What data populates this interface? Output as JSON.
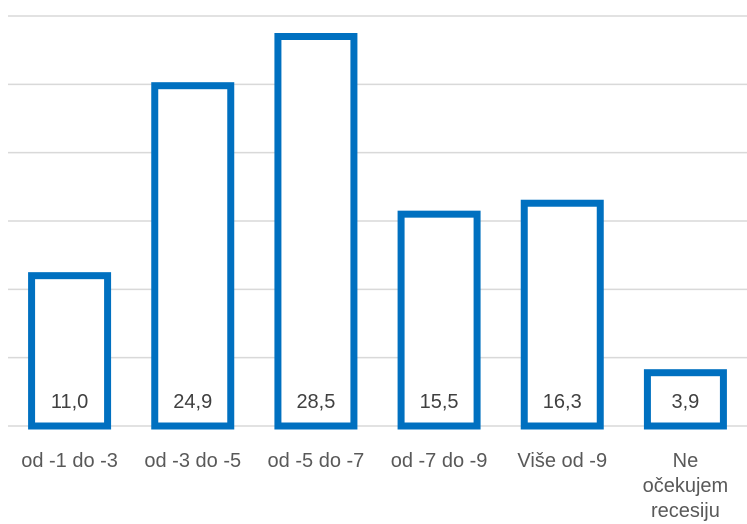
{
  "chart_data": {
    "type": "bar",
    "categories": [
      "od -1 do -3",
      "od -3 do -5",
      "od -5 do -7",
      "od -7 do -9",
      "Više od -9",
      "Ne očekujem recesiju"
    ],
    "category_lines": [
      [
        "od -1 do -3"
      ],
      [
        "od -3 do -5"
      ],
      [
        "od -5 do -7"
      ],
      [
        "od -7 do -9"
      ],
      [
        "Više od -9"
      ],
      [
        "Ne",
        "očekujem",
        "recesiju"
      ]
    ],
    "values": [
      11.0,
      24.9,
      28.5,
      15.5,
      16.3,
      3.9
    ],
    "value_labels": [
      "11,0",
      "24,9",
      "28,5",
      "15,5",
      "16,3",
      "3,9"
    ],
    "ylim": [
      0,
      30
    ],
    "grid": true,
    "legend": "none",
    "bar_outline_color": "#0070C0",
    "bar_fill_color": "#FFFFFF"
  }
}
